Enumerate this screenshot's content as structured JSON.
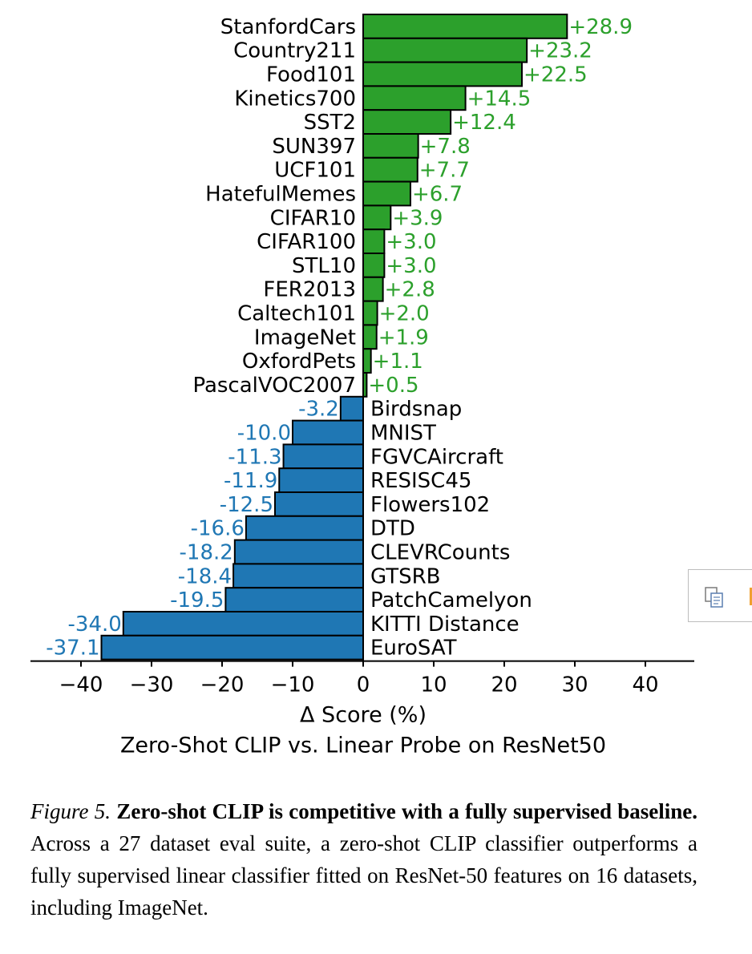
{
  "chart_data": {
    "type": "bar",
    "orientation": "horizontal",
    "title": "Zero-Shot CLIP vs. Linear Probe on ResNet50",
    "xlabel": "Δ Score (%)",
    "ylabel": "",
    "xlim": [
      -47,
      47
    ],
    "xticks": [
      -40,
      -30,
      -20,
      -10,
      0,
      10,
      20,
      30,
      40
    ],
    "xtick_labels": [
      "−40",
      "−30",
      "−20",
      "−10",
      "0",
      "10",
      "20",
      "30",
      "40"
    ],
    "grid": false,
    "colors": {
      "positive": "#2ca02c",
      "negative": "#1f77b4",
      "edge": "#000000"
    },
    "categories": [
      "StanfordCars",
      "Country211",
      "Food101",
      "Kinetics700",
      "SST2",
      "SUN397",
      "UCF101",
      "HatefulMemes",
      "CIFAR10",
      "CIFAR100",
      "STL10",
      "FER2013",
      "Caltech101",
      "ImageNet",
      "OxfordPets",
      "PascalVOC2007",
      "Birdsnap",
      "MNIST",
      "FGVCAircraft",
      "RESISC45",
      "Flowers102",
      "DTD",
      "CLEVRCounts",
      "GTSRB",
      "PatchCamelyon",
      "KITTI Distance",
      "EuroSAT"
    ],
    "values": [
      28.9,
      23.2,
      22.5,
      14.5,
      12.4,
      7.8,
      7.7,
      6.7,
      3.9,
      3.0,
      3.0,
      2.8,
      2.0,
      1.9,
      1.1,
      0.5,
      -3.2,
      -10.0,
      -11.3,
      -11.9,
      -12.5,
      -16.6,
      -18.2,
      -18.4,
      -19.5,
      -34.0,
      -37.1
    ],
    "value_labels": [
      "+28.9",
      "+23.2",
      "+22.5",
      "+14.5",
      "+12.4",
      "+7.8",
      "+7.7",
      "+6.7",
      "+3.9",
      "+3.0",
      "+3.0",
      "+2.8",
      "+2.0",
      "+1.9",
      "+1.1",
      "+0.5",
      "-3.2",
      "-10.0",
      "-11.3",
      "-11.9",
      "-12.5",
      "-16.6",
      "-18.2",
      "-18.4",
      "-19.5",
      "-34.0",
      "-37.1"
    ]
  },
  "caption": {
    "figure_label": "Figure 5.",
    "bold_text": "Zero-shot CLIP is competitive with a fully supervised baseline.",
    "body_text": "Across a 27 dataset eval suite, a zero-shot CLIP classifier outperforms a fully supervised linear classifier fitted on ResNet-50 features on 16 datasets, including ImageNet."
  },
  "side_widget": {
    "icon": "copy-icon"
  }
}
